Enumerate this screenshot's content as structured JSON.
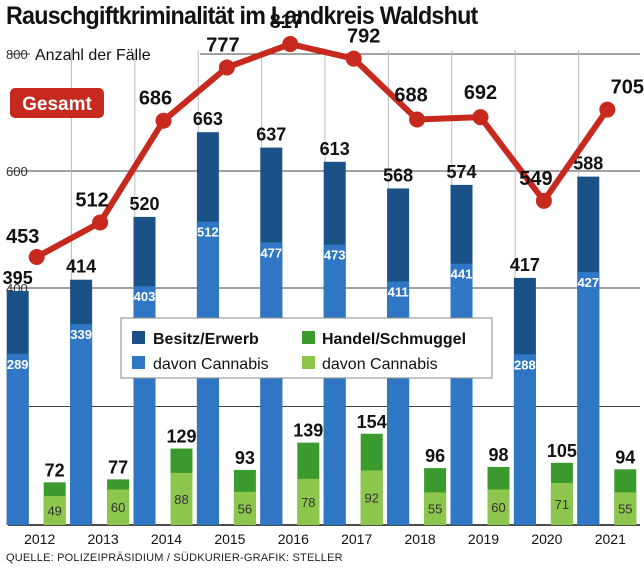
{
  "title": "Rauschgiftkriminalität im Landkreis Waldshut",
  "source": "QUELLE: POLIZEIPRÄSIDIUM / SÜDKURIER-GRAFIK: STELLER",
  "colors": {
    "besitz_dark": "#1a5288",
    "besitz_cannabis": "#2f77c4",
    "handel_dark": "#3b9a2e",
    "handel_cannabis": "#8cc64d",
    "line": "#c8291e",
    "grid": "#444444"
  },
  "chart_data": {
    "type": "bar",
    "title": "Rauschgiftkriminalität im Landkreis Waldshut",
    "ylabel": "Anzahl der Fälle",
    "ylim": [
      0,
      800
    ],
    "yticks": [
      400,
      600,
      800
    ],
    "categories": [
      "2012",
      "2013",
      "2014",
      "2015",
      "2016",
      "2017",
      "2018",
      "2019",
      "2020",
      "2021"
    ],
    "series": [
      {
        "name": "Besitz/Erwerb",
        "values": [
          395,
          414,
          520,
          663,
          637,
          613,
          568,
          574,
          417,
          588
        ]
      },
      {
        "name": "davon Cannabis",
        "group": "Besitz/Erwerb",
        "values": [
          289,
          339,
          403,
          512,
          477,
          473,
          411,
          441,
          288,
          427
        ]
      },
      {
        "name": "Handel/Schmuggel",
        "values": [
          72,
          77,
          129,
          93,
          139,
          154,
          96,
          98,
          105,
          94
        ]
      },
      {
        "name": "davon Cannabis",
        "group": "Handel/Schmuggel",
        "values": [
          49,
          60,
          88,
          56,
          78,
          92,
          55,
          60,
          71,
          55
        ]
      },
      {
        "name": "Gesamt",
        "type": "line",
        "values": [
          453,
          512,
          686,
          777,
          817,
          792,
          688,
          692,
          549,
          705
        ]
      }
    ],
    "legend": [
      "Besitz/Erwerb",
      "Handel/Schmuggel",
      "davon Cannabis",
      "davon Cannabis"
    ],
    "line_label": "Gesamt"
  }
}
